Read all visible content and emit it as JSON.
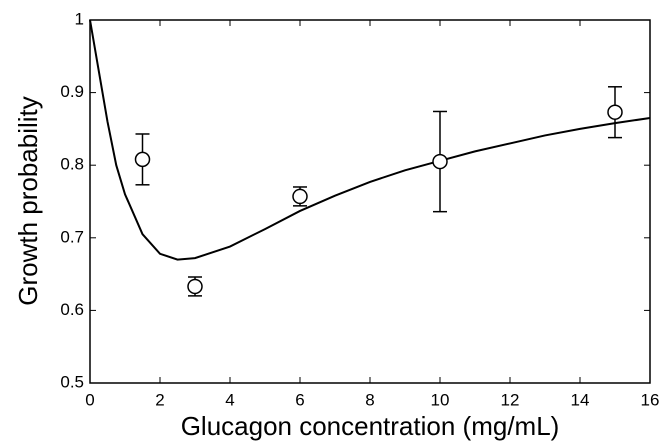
{
  "chart_data": {
    "type": "scatter",
    "x_label": "Glucagon concentration (mg/mL)",
    "y_label": "Growth probability",
    "xlim": [
      0,
      16
    ],
    "xticks": [
      0,
      2,
      4,
      6,
      8,
      10,
      12,
      14,
      16
    ],
    "ylim": [
      0.5,
      1
    ],
    "yticks": [
      0.5,
      0.6,
      0.7,
      0.8,
      0.9,
      1
    ],
    "series": [
      {
        "type": "line",
        "color": "#000000",
        "x": [
          0,
          0.25,
          0.5,
          0.75,
          1,
          1.5,
          2,
          2.5,
          3,
          4,
          5,
          6,
          7,
          8,
          9,
          10,
          11,
          12,
          13,
          14,
          15,
          16
        ],
        "values": [
          1,
          0.93,
          0.86,
          0.8,
          0.76,
          0.705,
          0.678,
          0.67,
          0.672,
          0.688,
          0.712,
          0.737,
          0.758,
          0.777,
          0.793,
          0.806,
          0.819,
          0.83,
          0.841,
          0.85,
          0.858,
          0.865
        ]
      },
      {
        "type": "errorbar",
        "color": "#000000",
        "x": [
          1.5,
          3,
          6,
          10,
          15
        ],
        "values": [
          0.808,
          0.633,
          0.757,
          0.805,
          0.873
        ],
        "errors": [
          0.035,
          0.013,
          0.013,
          0.069,
          0.035
        ]
      }
    ]
  }
}
